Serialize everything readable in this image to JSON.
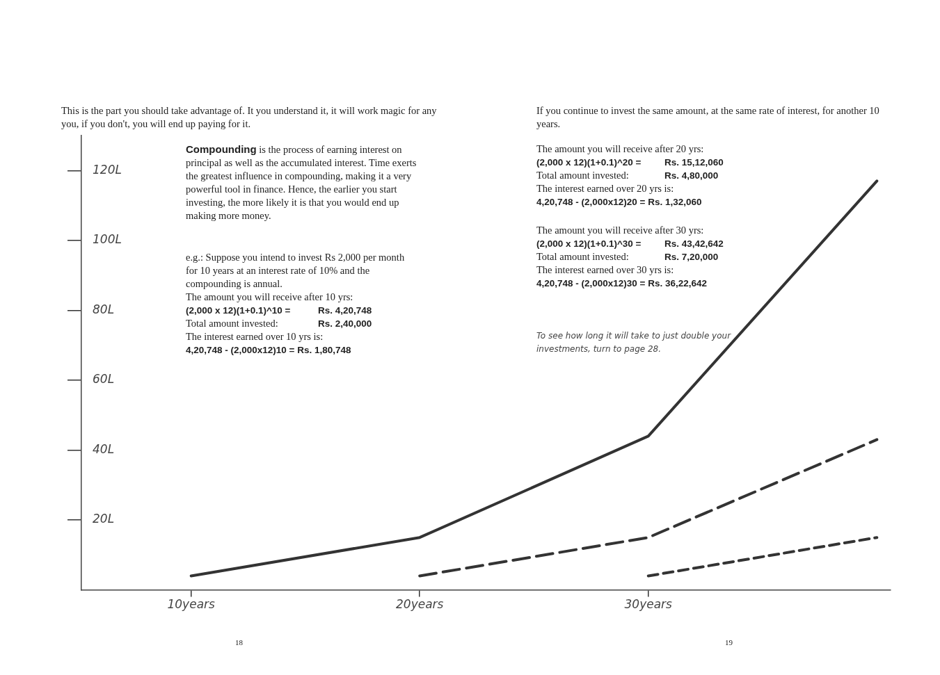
{
  "chart_data": {
    "type": "line",
    "x": [
      10,
      20,
      30,
      40
    ],
    "series": [
      {
        "color": "#333333",
        "line_style": "solid",
        "values": [
          4,
          15,
          44,
          117
        ]
      },
      {
        "color": "#333333",
        "line_style": "dashed",
        "values": [
          null,
          4,
          15,
          43
        ]
      },
      {
        "color": "#333333",
        "line_style": "dashed",
        "values": [
          null,
          null,
          4,
          15
        ]
      }
    ],
    "marker": "none",
    "xlim": [
      5.2,
      40.6
    ],
    "xticks": [
      {
        "value": 10,
        "label": "10years"
      },
      {
        "value": 20,
        "label": "20years"
      },
      {
        "value": 30,
        "label": "30years"
      }
    ],
    "ylim": [
      0,
      130
    ],
    "yticks": [
      {
        "value": 20,
        "label": "20L"
      },
      {
        "value": 40,
        "label": "40L"
      },
      {
        "value": 60,
        "label": "60L"
      },
      {
        "value": 80,
        "label": "80L"
      },
      {
        "value": 100,
        "label": "100L"
      },
      {
        "value": 120,
        "label": "120L"
      }
    ],
    "grid": false,
    "legend": false,
    "annotations": [
      "This is the part you should take advantage of. It you understand it, it will work magic for any you, if you don't, you will end up paying for it.",
      "Compounding",
      "is the process of earning interest on principal as well as the accumulated interest. Time exerts the greatest influence in compounding, making it a very powerful tool in finance. Hence, the earlier you start investing, the more likely it is that you would end up making more money.",
      "e.g.: Suppose you intend to invest Rs 2,000 per month for 10 years at an interest rate of 10% and the compounding is annual.",
      "The amount you will receive after 10 yrs:",
      "(2,000 x 12)(1+0.1)^10 =",
      "Rs. 4,20,748",
      "Total amount invested:",
      "Rs. 2,40,000",
      "The interest earned over 10 yrs is:",
      "4,20,748 - (2,000x12)10 = Rs. 1,80,748",
      "If you continue to invest the same amount, at the same rate of interest, for another 10 years.",
      "The amount you will receive after 20 yrs:",
      "(2,000 x 12)(1+0.1)^20 =",
      "Rs. 15,12,060",
      "Total amount invested:",
      "Rs. 4,80,000",
      "The interest earned over 20 yrs is:",
      "4,20,748 - (2,000x12)20 = Rs. 1,32,060",
      "The amount you will receive after 30 yrs:",
      "(2,000 x 12)(1+0.1)^30 =",
      "Rs. 43,42,642",
      "Total amount invested:",
      "Rs. 7,20,000",
      "The interest earned over 30 yrs is:",
      "4,20,748 - (2,000x12)30 = Rs. 36,22,642",
      "To see how long it will take to just double your investments, turn to page 28.",
      "18",
      "19"
    ]
  }
}
